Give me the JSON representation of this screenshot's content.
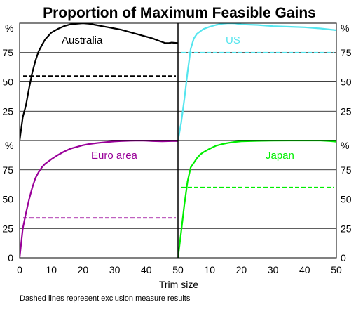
{
  "chart_data": {
    "type": "line",
    "title": "Proportion of Maximum Feasible Gains",
    "xlabel": "Trim size",
    "unit_label": "%",
    "footnote": "Dashed lines represent exclusion measure results",
    "xlim": [
      0,
      50
    ],
    "ylim": [
      0,
      100
    ],
    "x_ticks": [
      "0",
      "10",
      "20",
      "30",
      "40",
      "50"
    ],
    "y_ticks": [
      "0",
      "25",
      "50",
      "75"
    ],
    "grid": "horizontal",
    "panels": [
      {
        "id": "australia",
        "label": "Australia",
        "color": "#000000",
        "dashed_value": 55,
        "x": [
          0,
          1,
          2,
          3,
          4,
          5,
          6,
          7,
          8,
          9,
          10,
          12,
          14,
          16,
          18,
          20,
          22,
          24,
          26,
          28,
          30,
          32,
          34,
          36,
          38,
          40,
          42,
          44,
          46,
          47,
          48,
          50
        ],
        "values": [
          0,
          20,
          30,
          45,
          58,
          68,
          76,
          81,
          86,
          89,
          92,
          95,
          97.5,
          99,
          99.5,
          100,
          99.5,
          98.5,
          97.5,
          96.5,
          95.5,
          94.5,
          93,
          91.5,
          90,
          88.5,
          87,
          85,
          83,
          83,
          83.5,
          83
        ]
      },
      {
        "id": "us",
        "label": "US",
        "color": "#55e5ee",
        "dashed_value": 75,
        "x": [
          0,
          1,
          2,
          3,
          4,
          5,
          6,
          7,
          8,
          10,
          12,
          14,
          16,
          18,
          20,
          25,
          30,
          35,
          40,
          45,
          50
        ],
        "values": [
          0,
          15,
          35,
          58,
          78,
          87,
          91,
          93,
          95,
          97,
          98.5,
          99.5,
          100,
          99.8,
          99,
          98.5,
          97.5,
          97,
          96.5,
          95.5,
          94
        ]
      },
      {
        "id": "euro-area",
        "label": "Euro area",
        "color": "#990099",
        "dashed_value": 34,
        "x": [
          0,
          1,
          2,
          3,
          4,
          5,
          6,
          7,
          8,
          9,
          10,
          12,
          14,
          16,
          18,
          20,
          22,
          25,
          28,
          30,
          32,
          35,
          38,
          40,
          42,
          45,
          48,
          50
        ],
        "values": [
          0,
          25,
          38,
          50,
          60,
          68,
          73,
          77,
          80,
          82,
          84,
          87.5,
          90.5,
          93,
          94.5,
          96,
          97,
          98,
          98.8,
          99.2,
          99.5,
          99.8,
          100,
          99.8,
          99.5,
          99.3,
          99.5,
          99.5
        ]
      },
      {
        "id": "japan",
        "label": "Japan",
        "color": "#00ee00",
        "dashed_value": 60,
        "x": [
          0,
          1,
          2,
          3,
          4,
          5,
          6,
          7,
          8,
          10,
          12,
          14,
          16,
          18,
          20,
          25,
          30,
          35,
          40,
          45,
          48,
          50
        ],
        "values": [
          0,
          22,
          45,
          65,
          77,
          81,
          85,
          88,
          90,
          93,
          95.5,
          97,
          98,
          98.8,
          99.3,
          99.7,
          99.9,
          100,
          100,
          100,
          99.5,
          99
        ]
      }
    ]
  }
}
